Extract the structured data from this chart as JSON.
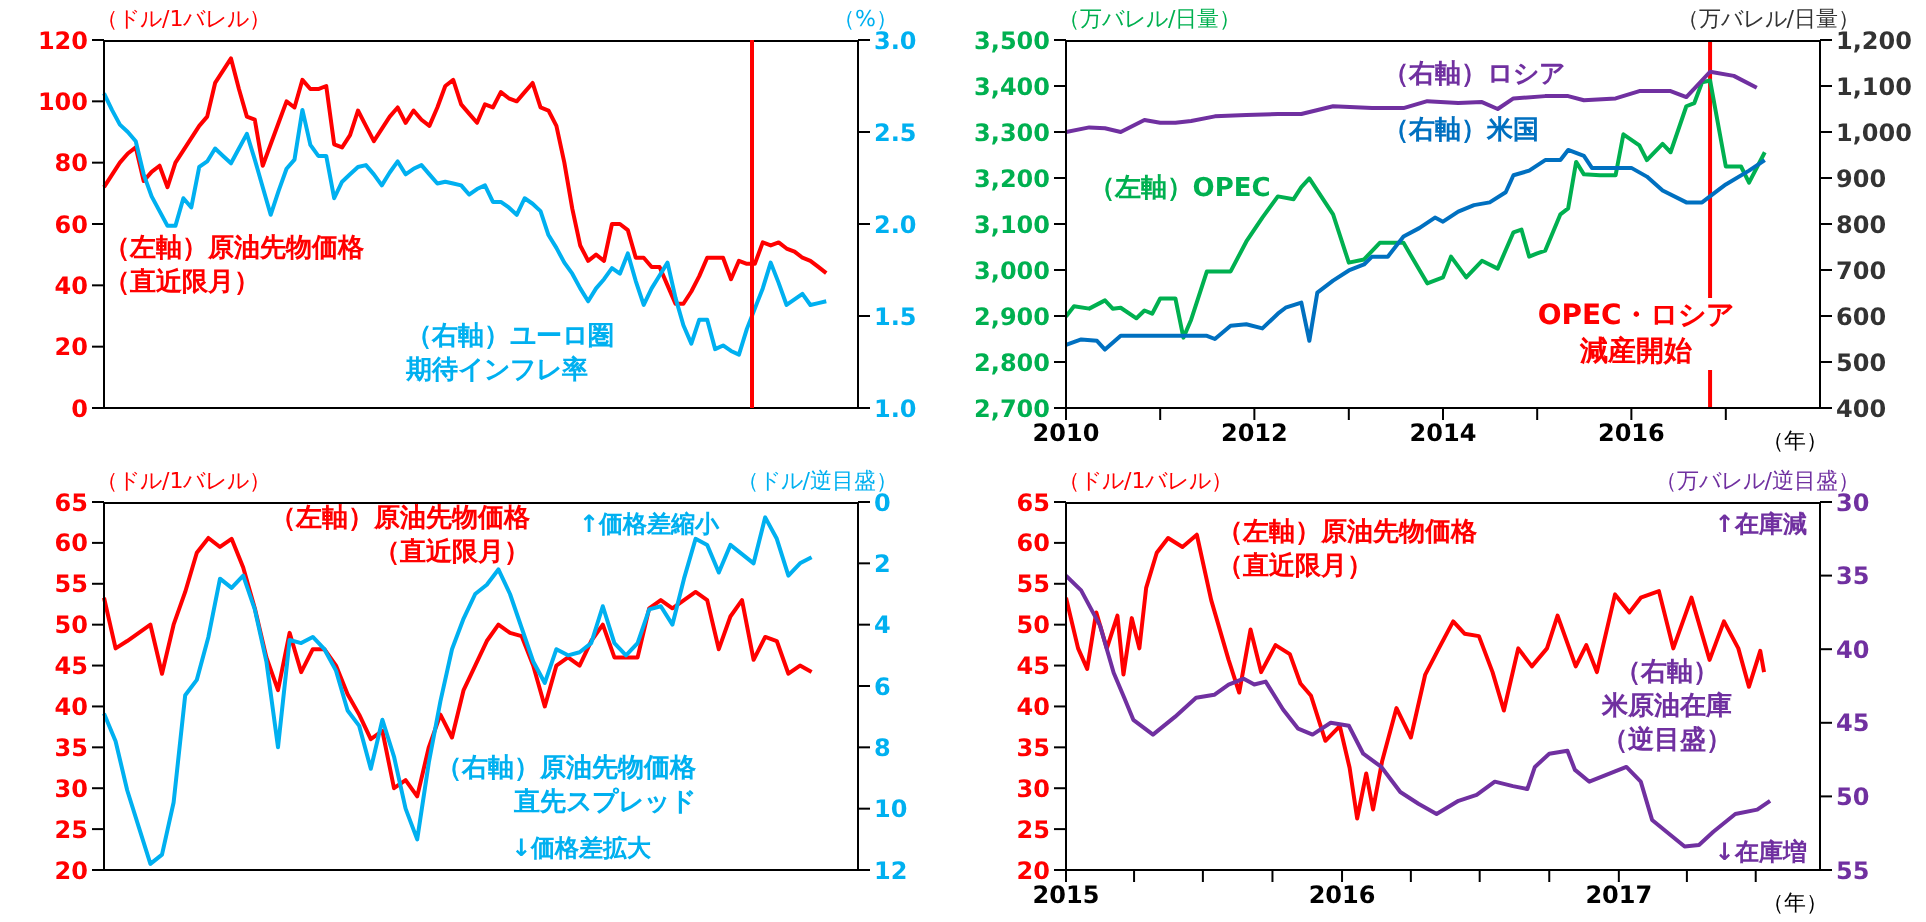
{
  "chart_data": [
    {
      "type": "line",
      "ylabel": "（ドル/1バレル）",
      "y2label": "（%）",
      "tick_labels": "y",
      "categories": [
        null,
        null,
        null,
        null,
        null,
        null,
        null,
        null,
        null,
        null,
        null,
        null,
        null,
        null,
        null,
        null,
        null,
        null,
        null,
        null,
        null,
        null,
        null,
        null,
        null,
        null,
        null,
        null,
        null,
        null,
        null,
        null,
        null,
        null,
        null,
        null,
        null,
        null,
        null,
        null,
        null,
        null,
        null,
        null,
        null,
        null,
        null,
        null,
        null,
        null,
        null,
        null,
        null,
        null,
        null,
        null,
        null,
        null,
        null,
        null,
        null,
        null,
        null,
        null,
        null,
        null,
        null,
        null,
        null,
        null,
        null,
        null,
        null,
        null,
        null,
        null,
        null,
        null,
        null,
        null,
        null,
        null,
        null,
        null,
        null,
        null,
        null,
        null,
        null,
        null,
        null,
        null,
        null,
        null,
        null,
        null
      ],
      "ylim": [
        0,
        120
      ],
      "yticks": [
        0,
        20,
        40,
        60,
        80,
        100,
        120
      ],
      "y2lim": [
        1.0,
        3.0
      ],
      "y2ticks": [
        {
          "value": 1.0,
          "label": "1.0"
        },
        {
          "value": 1.5,
          "label": "1.5"
        },
        {
          "value": 2.0,
          "label": "2.0"
        },
        {
          "value": 2.5,
          "label": "2.5"
        },
        {
          "value": 3.0,
          "label": "3.0"
        }
      ],
      "series": [
        {
          "name": "（左軸）原油先物価格（直近限月）",
          "color": "#ff0000",
          "values": [
            72,
            76,
            80,
            83,
            85,
            74,
            77,
            79,
            72,
            80,
            84,
            88,
            92,
            95,
            106,
            110,
            114,
            104,
            95,
            94,
            79,
            86,
            93,
            100,
            98,
            107,
            104,
            104,
            105,
            86,
            85,
            89,
            97,
            92,
            87,
            91,
            95,
            98,
            93,
            97,
            94,
            92,
            98,
            105,
            107,
            99,
            96,
            93,
            99,
            98,
            103,
            101,
            100,
            103,
            106,
            98,
            97,
            92,
            80,
            65,
            53,
            48,
            50,
            48,
            60,
            60,
            58,
            49,
            49,
            46,
            46,
            40,
            34,
            34,
            38,
            43,
            49,
            49,
            49,
            42,
            48,
            47,
            47,
            54,
            53,
            54,
            52,
            51,
            49,
            48,
            46,
            44,
            null,
            null,
            null,
            null
          ]
        },
        {
          "name": "（右軸）ユーロ圏期待インフレ率",
          "color": "#00b0f0",
          "axis": "y2",
          "values": [
            2.71,
            2.62,
            2.54,
            2.5,
            2.45,
            2.27,
            2.15,
            2.07,
            1.99,
            1.99,
            2.14,
            2.09,
            2.31,
            2.34,
            2.41,
            2.37,
            2.33,
            2.41,
            2.49,
            2.35,
            2.2,
            2.05,
            2.18,
            2.3,
            2.35,
            2.62,
            2.43,
            2.37,
            2.37,
            2.14,
            2.23,
            2.27,
            2.31,
            2.32,
            2.27,
            2.21,
            2.28,
            2.34,
            2.27,
            2.3,
            2.32,
            2.27,
            2.22,
            2.23,
            2.22,
            2.21,
            2.16,
            2.19,
            2.21,
            2.12,
            2.12,
            2.09,
            2.05,
            2.14,
            2.11,
            2.07,
            1.94,
            1.87,
            1.79,
            1.73,
            1.65,
            1.58,
            1.65,
            1.7,
            1.76,
            1.73,
            1.84,
            1.69,
            1.56,
            1.65,
            1.72,
            1.79,
            1.6,
            1.45,
            1.35,
            1.48,
            1.48,
            1.32,
            1.34,
            1.31,
            1.29,
            1.43,
            1.54,
            1.65,
            1.79,
            1.68,
            1.56,
            1.59,
            1.62,
            1.56,
            1.57,
            1.58,
            null,
            null,
            null,
            null
          ]
        }
      ]
    },
    {
      "type": "line",
      "ylabel": "（万バレル/日量）",
      "y2label": "（万バレル/日量）",
      "xlabel": "（年）",
      "xlim": [
        "2010-01",
        "2018-01"
      ],
      "xticks": [
        {
          "value": "2010",
          "label": "2010"
        },
        {
          "value": "2011",
          "label": null
        },
        {
          "value": "2012",
          "label": "2012"
        },
        {
          "value": "2013",
          "label": null
        },
        {
          "value": "2014",
          "label": "2014"
        },
        {
          "value": "2015",
          "label": null
        },
        {
          "value": "2016",
          "label": "2016"
        },
        {
          "value": "2017",
          "label": null
        }
      ],
      "ylim": [
        2700,
        3500
      ],
      "yticks": [
        {
          "value": 2700,
          "label": "2,700"
        },
        {
          "value": 2800,
          "label": "2,800"
        },
        {
          "value": 2900,
          "label": "2,900"
        },
        {
          "value": 3000,
          "label": "3,000"
        },
        {
          "value": 3100,
          "label": "3,100"
        },
        {
          "value": 3200,
          "label": "3,200"
        },
        {
          "value": 3300,
          "label": "3,300"
        },
        {
          "value": 3400,
          "label": "3,400"
        },
        {
          "value": 3500,
          "label": "3,500"
        }
      ],
      "y2lim": [
        400,
        1200
      ],
      "y2ticks": [
        400,
        500,
        600,
        700,
        800,
        900,
        {
          "value": 1000,
          "label": "1,000"
        },
        {
          "value": 1100,
          "label": "1,100"
        },
        {
          "value": 1200,
          "label": "1,200"
        }
      ],
      "ref_lines": [
        {
          "axis": "x",
          "value": "2016-11",
          "label": "OPEC・ロシア減産開始",
          "color": "#ff0000"
        }
      ],
      "series": [
        {
          "name": "（左軸）OPEC",
          "color": "#00b050",
          "x": [
            "2010-01",
            "2010-02",
            "2010-04",
            "2010-06",
            "2010-07",
            "2010-08",
            "2010-10",
            "2010-11",
            "2010-12",
            "2011-01",
            "2011-03",
            "2011-04",
            "2011-05",
            "2011-07",
            "2011-10",
            "2011-12",
            "2012-02",
            "2012-04",
            "2012-06",
            "2012-07",
            "2012-08",
            "2012-11",
            "2013-01",
            "2013-03",
            "2013-05",
            "2013-08",
            "2013-11",
            "2014-01",
            "2014-02",
            "2014-04",
            "2014-06",
            "2014-08",
            "2014-10",
            "2014-11",
            "2014-12",
            "2015-01",
            "2015-02",
            "2015-04",
            "2015-05",
            "2015-06",
            "2015-07",
            "2015-09",
            "2015-11",
            "2015-12",
            "2016-02",
            "2016-03",
            "2016-05",
            "2016-06",
            "2016-08",
            "2016-09",
            "2016-10",
            "2016-11",
            "2017-01",
            "2017-03",
            "2017-04",
            "2017-06"
          ],
          "values": [
            2899,
            2921,
            2916,
            2934,
            2916,
            2918,
            2895,
            2912,
            2905,
            2938,
            2938,
            2853,
            2892,
            2997,
            2997,
            3062,
            3114,
            3160,
            3154,
            3180,
            3199,
            3121,
            3016,
            3023,
            3059,
            3059,
            2971,
            2984,
            3029,
            2984,
            3020,
            3003,
            3082,
            3088,
            3029,
            3036,
            3042,
            3121,
            3134,
            3235,
            3208,
            3206,
            3206,
            3295,
            3271,
            3239,
            3274,
            3256,
            3356,
            3363,
            3408,
            3412,
            3225,
            3225,
            3190,
            3256
          ]
        },
        {
          "name": "（右軸）米国",
          "color": "#0070c0",
          "axis": "y2",
          "x": [
            "2010-01",
            "2010-03",
            "2010-05",
            "2010-06",
            "2010-08",
            "2010-11",
            "2011-03",
            "2011-07",
            "2011-08",
            "2011-10",
            "2011-12",
            "2012-02",
            "2012-04",
            "2012-05",
            "2012-07",
            "2012-08",
            "2012-09",
            "2012-11",
            "2013-01",
            "2013-03",
            "2013-04",
            "2013-06",
            "2013-08",
            "2013-10",
            "2013-12",
            "2014-01",
            "2014-03",
            "2014-05",
            "2014-07",
            "2014-09",
            "2014-10",
            "2014-12",
            "2015-02",
            "2015-04",
            "2015-05",
            "2015-07",
            "2015-08",
            "2015-11",
            "2016-01",
            "2016-03",
            "2016-05",
            "2016-08",
            "2016-10",
            "2016-12",
            "2017-01",
            "2017-04",
            "2017-06"
          ],
          "values": [
            537,
            549,
            546,
            527,
            557,
            557,
            557,
            557,
            550,
            579,
            582,
            573,
            605,
            618,
            629,
            546,
            651,
            677,
            699,
            712,
            729,
            729,
            773,
            791,
            814,
            805,
            827,
            841,
            847,
            869,
            906,
            916,
            939,
            939,
            961,
            948,
            922,
            922,
            922,
            903,
            873,
            847,
            847,
            873,
            886,
            916,
            939
          ]
        },
        {
          "name": "（右軸）ロシア",
          "color": "#7030a0",
          "axis": "y2",
          "x": [
            "2010-01",
            "2010-04",
            "2010-06",
            "2010-08",
            "2010-11",
            "2011-01",
            "2011-03",
            "2011-05",
            "2011-08",
            "2011-12",
            "2012-04",
            "2012-07",
            "2012-11",
            "2013-04",
            "2013-08",
            "2013-11",
            "2014-03",
            "2014-06",
            "2014-08",
            "2014-10",
            "2015-02",
            "2015-05",
            "2015-07",
            "2015-11",
            "2016-02",
            "2016-06",
            "2016-08",
            "2016-10",
            "2016-11",
            "2017-02",
            "2017-05"
          ],
          "values": [
            1000,
            1010,
            1008,
            1000,
            1026,
            1020,
            1020,
            1024,
            1034,
            1037,
            1039,
            1039,
            1056,
            1052,
            1052,
            1067,
            1063,
            1065,
            1050,
            1073,
            1078,
            1078,
            1069,
            1073,
            1089,
            1089,
            1076,
            1112,
            1131,
            1122,
            1096
          ]
        }
      ]
    },
    {
      "type": "line",
      "ylabel": "（ドル/1バレル）",
      "y2label": "（ドル/逆目盛）",
      "tick_labels": "y",
      "categories": [
        null,
        null,
        null,
        null,
        null,
        null,
        null,
        null,
        null,
        null,
        null,
        null,
        null,
        null,
        null,
        null,
        null,
        null,
        null,
        null,
        null,
        null,
        null,
        null,
        null,
        null,
        null,
        null,
        null,
        null,
        null,
        null,
        null,
        null,
        null,
        null,
        null,
        null,
        null,
        null,
        null,
        null,
        null,
        null,
        null,
        null,
        null,
        null,
        null,
        null,
        null,
        null,
        null,
        null,
        null,
        null,
        null,
        null,
        null,
        null,
        null,
        null,
        null,
        null,
        null,
        null
      ],
      "ylim": [
        20,
        65
      ],
      "yticks": [
        20,
        25,
        30,
        35,
        40,
        45,
        50,
        55,
        60,
        65
      ],
      "y2lim": [
        12,
        0
      ],
      "y2ticks": [
        0,
        2,
        4,
        6,
        8,
        10,
        12
      ],
      "annotations": [
        "↑価格差縮小",
        "↓価格差拡大"
      ],
      "series": [
        {
          "name": "（左軸）原油先物価格（直近限月）",
          "color": "#ff0000",
          "values": [
            53.3,
            47.1,
            48,
            49,
            50,
            44,
            50,
            54,
            58.8,
            60.6,
            59.5,
            60.5,
            57,
            52,
            46,
            42,
            49,
            44.2,
            47,
            47,
            45,
            41.5,
            39,
            36,
            37,
            30,
            31,
            29,
            35,
            39,
            36.2,
            42,
            45,
            48,
            50,
            49,
            48.6,
            45,
            40,
            45,
            46,
            45,
            48,
            50,
            46,
            46,
            46,
            52,
            53,
            52,
            53,
            54,
            53,
            47,
            51,
            53,
            45.7,
            48.5,
            48,
            44,
            45,
            44.2,
            null,
            null,
            null,
            null
          ]
        },
        {
          "name": "（右軸）原油先物価格直先スプレッド",
          "color": "#00b0f0",
          "axis": "y2",
          "values": [
            6.9,
            7.8,
            9.4,
            10.6,
            11.8,
            11.5,
            9.8,
            6.3,
            5.8,
            4.4,
            2.5,
            2.8,
            2.4,
            3.5,
            5.2,
            8.0,
            4.5,
            4.6,
            4.4,
            4.8,
            5.5,
            6.8,
            7.3,
            8.7,
            7.1,
            8.3,
            10.0,
            11.0,
            8.5,
            6.5,
            4.8,
            3.8,
            3.0,
            2.7,
            2.2,
            3.0,
            4.1,
            5.2,
            5.9,
            4.8,
            5.0,
            4.9,
            4.6,
            3.4,
            4.6,
            5.0,
            4.6,
            3.5,
            3.4,
            4.0,
            2.5,
            1.2,
            1.4,
            2.3,
            1.4,
            1.7,
            2.0,
            0.5,
            1.2,
            2.4,
            2.0,
            1.8,
            null,
            null,
            null,
            null
          ]
        }
      ]
    },
    {
      "type": "line",
      "ylabel": "（ドル/1バレル）",
      "y2label": "（万バレル/逆目盛）",
      "xlabel": "（年）",
      "xlim": [
        "2015-01-01",
        "2017-09-24"
      ],
      "xticks": [
        {
          "value": "2015-01-01",
          "label": "2015"
        },
        {
          "value": "2015-04-01",
          "label": null
        },
        {
          "value": "2015-07-01",
          "label": null
        },
        {
          "value": "2015-10-01",
          "label": null
        },
        {
          "value": "2016-01-01",
          "label": "2016"
        },
        {
          "value": "2016-04-01",
          "label": null
        },
        {
          "value": "2016-07-01",
          "label": null
        },
        {
          "value": "2016-10-01",
          "label": null
        },
        {
          "value": "2017-01-01",
          "label": "2017"
        },
        {
          "value": "2017-04-01",
          "label": null
        },
        {
          "value": "2017-07-01",
          "label": null
        }
      ],
      "ylim": [
        20,
        65
      ],
      "yticks": [
        20,
        25,
        30,
        35,
        40,
        45,
        50,
        55,
        60,
        65
      ],
      "y2lim": [
        55,
        30
      ],
      "y2ticks": [
        30,
        35,
        40,
        45,
        50,
        55
      ],
      "annotations": [
        "↑在庫減",
        "↓在庫増"
      ],
      "series": [
        {
          "name": "（左軸）原油先物価格（直近限月）",
          "color": "#ff0000",
          "x": [
            "2015-01-01",
            "2015-01-17",
            "2015-01-29",
            "2015-02-10",
            "2015-02-24",
            "2015-03-10",
            "2015-03-18",
            "2015-03-29",
            "2015-04-08",
            "2015-04-17",
            "2015-05-01",
            "2015-05-16",
            "2015-06-04",
            "2015-06-23",
            "2015-07-12",
            "2015-08-04",
            "2015-08-18",
            "2015-09-02",
            "2015-09-16",
            "2015-10-05",
            "2015-10-24",
            "2015-11-07",
            "2015-11-21",
            "2015-12-10",
            "2015-12-29",
            "2016-01-11",
            "2016-01-21",
            "2016-02-02",
            "2016-02-11",
            "2016-02-23",
            "2016-03-13",
            "2016-04-01",
            "2016-04-20",
            "2016-05-08",
            "2016-05-27",
            "2016-06-11",
            "2016-06-30",
            "2016-07-18",
            "2016-08-02",
            "2016-08-21",
            "2016-09-08",
            "2016-09-28",
            "2016-10-12",
            "2016-11-05",
            "2016-11-19",
            "2016-12-03",
            "2016-12-27",
            "2017-01-15",
            "2017-01-30",
            "2017-02-23",
            "2017-03-14",
            "2017-04-07",
            "2017-05-01",
            "2017-05-20",
            "2017-06-08",
            "2017-06-22",
            "2017-07-07",
            "2017-07-12"
          ],
          "values": [
            53.3,
            47.1,
            44.6,
            51.5,
            47.1,
            51.1,
            43.9,
            50.8,
            47.1,
            54.5,
            58.8,
            60.6,
            59.5,
            61.0,
            53.0,
            45.7,
            41.7,
            49.4,
            44.2,
            47.5,
            46.4,
            42.8,
            41.3,
            35.8,
            37.6,
            32.5,
            26.3,
            31.8,
            27.4,
            33.3,
            39.8,
            36.2,
            43.9,
            47.1,
            50.4,
            48.9,
            48.6,
            44.2,
            39.5,
            47.1,
            44.9,
            47.1,
            51.1,
            44.9,
            47.5,
            44.2,
            53.7,
            51.5,
            53.3,
            54.1,
            47.1,
            53.3,
            45.7,
            50.4,
            47.1,
            42.4,
            46.8,
            44.2
          ]
        },
        {
          "name": "（右軸）米原油在庫（逆目盛）",
          "color": "#7030a0",
          "axis": "y2",
          "x": [
            "2015-01-01",
            "2015-01-21",
            "2015-02-15",
            "2015-03-05",
            "2015-03-19",
            "2015-03-31",
            "2015-04-26",
            "2015-05-25",
            "2015-06-22",
            "2015-07-16",
            "2015-08-04",
            "2015-08-24",
            "2015-09-07",
            "2015-09-22",
            "2015-10-15",
            "2015-11-04",
            "2015-11-23",
            "2015-12-17",
            "2016-01-10",
            "2016-01-29",
            "2016-02-22",
            "2016-03-18",
            "2016-04-11",
            "2016-05-05",
            "2016-06-03",
            "2016-06-27",
            "2016-07-21",
            "2016-08-14",
            "2016-09-02",
            "2016-09-12",
            "2016-10-01",
            "2016-10-25",
            "2016-11-04",
            "2016-11-23",
            "2016-12-27",
            "2017-01-11",
            "2017-01-30",
            "2017-02-14",
            "2017-03-05",
            "2017-03-29",
            "2017-04-17",
            "2017-05-06",
            "2017-06-04",
            "2017-07-03",
            "2017-07-20"
          ],
          "values": [
            35.0,
            36.0,
            38.4,
            41.6,
            43.3,
            44.8,
            45.8,
            44.6,
            43.3,
            43.1,
            42.4,
            42.0,
            42.4,
            42.2,
            44.1,
            45.4,
            45.8,
            45.0,
            45.2,
            47.1,
            48.0,
            49.7,
            50.5,
            51.2,
            50.3,
            49.9,
            49.0,
            49.3,
            49.5,
            48.0,
            47.1,
            46.9,
            48.2,
            49.0,
            48.3,
            48.0,
            49.0,
            51.6,
            52.4,
            53.4,
            53.3,
            52.4,
            51.2,
            50.9,
            50.3
          ]
        }
      ]
    }
  ]
}
